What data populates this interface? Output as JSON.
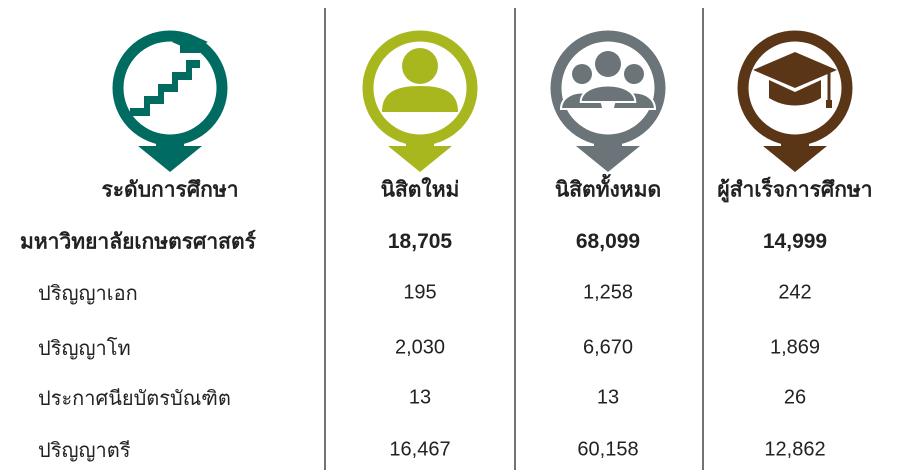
{
  "header": {
    "columns": [
      "ระดับการศึกษา",
      "นิสิตใหม่",
      "นิสิตทั้งหมด",
      "ผู้สำเร็จการศึกษา"
    ]
  },
  "table": {
    "rows": [
      {
        "label": "มหาวิทยาลัยเกษตรศาสตร์",
        "values": [
          "18,705",
          "68,099",
          "14,999"
        ]
      },
      {
        "label": "ปริญญาเอก",
        "values": [
          "195",
          "1,258",
          "242"
        ]
      },
      {
        "label": "ปริญญาโท",
        "values": [
          "2,030",
          "6,670",
          "1,869"
        ]
      },
      {
        "label": "ประกาศนียบัตรบัณฑิต",
        "values": [
          "13",
          "13",
          "26"
        ]
      },
      {
        "label": "ปริญญาตรี",
        "values": [
          "16,467",
          "60,158",
          "12,862"
        ]
      }
    ]
  }
}
